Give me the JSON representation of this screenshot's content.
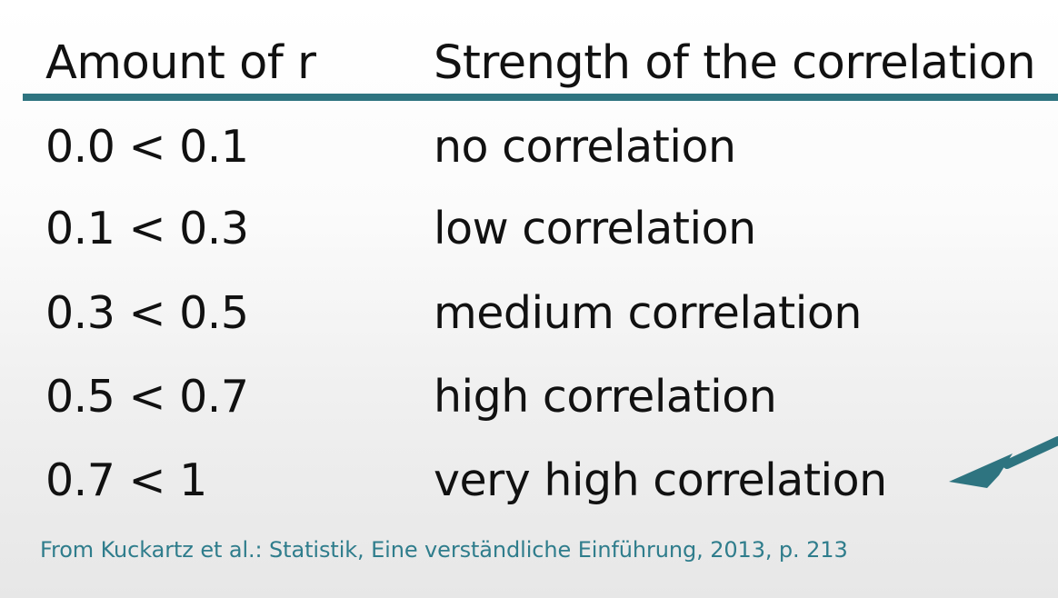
{
  "table": {
    "headers": [
      "Amount of r",
      "Strength of the correlation"
    ],
    "rows": [
      [
        "0.0 < 0.1",
        "no correlation"
      ],
      [
        "0.1 < 0.3",
        "low correlation"
      ],
      [
        "0.3 < 0.5",
        "medium correlation"
      ],
      [
        "0.5 < 0.7",
        "high correlation"
      ],
      [
        "0.7 < 1",
        "very high correlation"
      ]
    ]
  },
  "source": "From Kuckartz et al.: Statistik, Eine verständliche Einführung, 2013, p. 213",
  "colors": {
    "accent": "#2e7480",
    "source_text": "#2f7d8c",
    "text": "#111111"
  },
  "icons": {
    "pointer": "arrow-icon"
  }
}
